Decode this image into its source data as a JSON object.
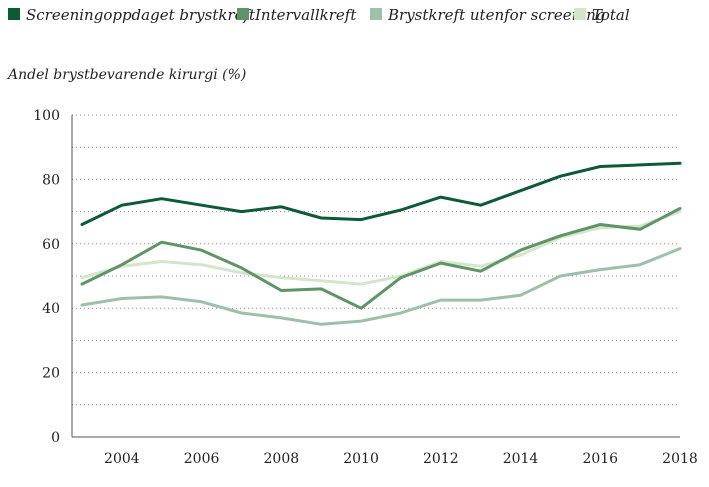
{
  "chart_data": {
    "type": "line",
    "title": "",
    "ylabel": "Andel brystbevarende kirurgi (%)",
    "xlabel": "",
    "ylim": [
      0,
      100
    ],
    "xlim": [
      2003,
      2018
    ],
    "yticks": [
      0,
      20,
      40,
      60,
      80,
      100
    ],
    "xticks": [
      2004,
      2006,
      2008,
      2010,
      2012,
      2014,
      2016,
      2018
    ],
    "grid": true,
    "legend_position": "top",
    "x": [
      2003,
      2004,
      2005,
      2006,
      2007,
      2008,
      2009,
      2010,
      2011,
      2012,
      2013,
      2014,
      2015,
      2016,
      2017,
      2018
    ],
    "series": [
      {
        "name": "Screeningoppdaget brystkreft",
        "color": "#0e5a34",
        "values": [
          66,
          72,
          74,
          72,
          70,
          71.5,
          68,
          67.5,
          70.5,
          74.5,
          72,
          76.5,
          81,
          84,
          84.5,
          85
        ]
      },
      {
        "name": "Intervallkreft",
        "color": "#5e9468",
        "values": [
          47.5,
          53.5,
          60.5,
          58,
          52.5,
          45.5,
          46,
          40,
          49.5,
          54,
          51.5,
          58,
          62.5,
          66,
          64.5,
          71
        ]
      },
      {
        "name": "Brystkreft utenfor screening",
        "color": "#9dc0a8",
        "values": [
          41,
          43,
          43.5,
          42,
          38.5,
          37,
          35,
          36,
          38.5,
          42.5,
          42.5,
          44,
          50,
          52,
          53.5,
          58.5
        ]
      },
      {
        "name": "Total",
        "color": "#d4e6c9",
        "values": [
          49.5,
          53,
          54.5,
          53.5,
          51,
          49.5,
          48.5,
          47.5,
          50,
          54.5,
          53,
          56.5,
          62,
          65,
          65.5,
          70
        ]
      }
    ]
  }
}
